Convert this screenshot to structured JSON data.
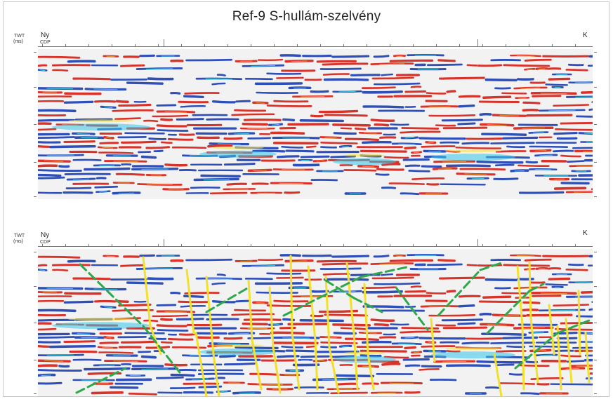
{
  "title": "Ref-9 S-hullám-szelvény",
  "panels": [
    {
      "id": "top",
      "twt_label": "TWT",
      "ms_label": "(ms)",
      "west_label": "Ny",
      "cdp_label": "CDP",
      "east_label": "K"
    },
    {
      "id": "bottom",
      "twt_label": "TWT",
      "ms_label": "(ms)",
      "west_label": "Ny",
      "cdp_label": "CDP",
      "east_label": "K"
    }
  ],
  "colors": {
    "red": "#d8332a",
    "orange": "#f08a2a",
    "blue": "#2f4fb8",
    "cyan": "#35c4e8",
    "yellow_peak": "#f5e23a",
    "fault_yellow": "#f2e02c",
    "fault_green": "#2ea84a"
  }
}
